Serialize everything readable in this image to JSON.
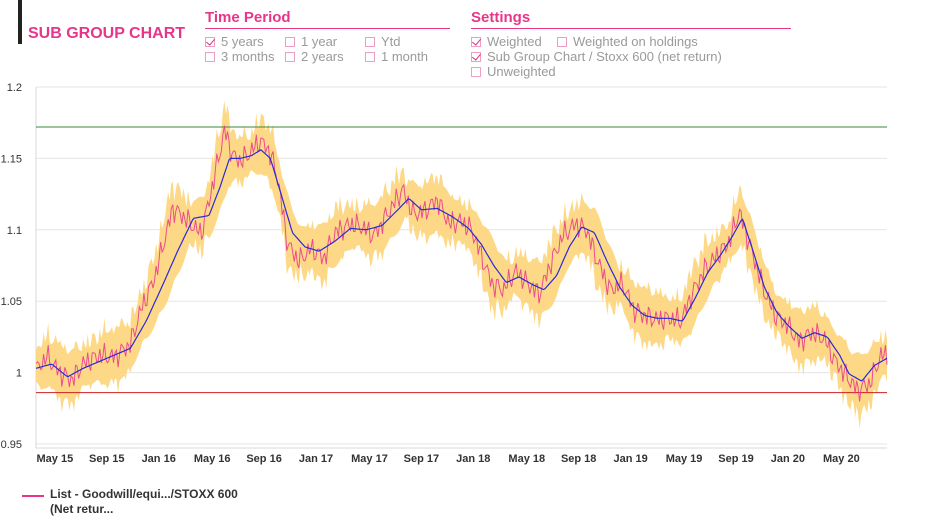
{
  "header": {
    "title": "SUB GROUP CHART"
  },
  "time_period": {
    "title": "Time Period",
    "options": [
      {
        "label": "5 years",
        "checked": true
      },
      {
        "label": "1 year",
        "checked": false
      },
      {
        "label": "Ytd",
        "checked": false
      },
      {
        "label": "3 months",
        "checked": false
      },
      {
        "label": "2 years",
        "checked": false
      },
      {
        "label": "1 month",
        "checked": false
      }
    ]
  },
  "settings": {
    "title": "Settings",
    "options": [
      {
        "label": "Weighted",
        "checked": true
      },
      {
        "label": "Weighted on holdings",
        "checked": false
      },
      {
        "label": "Sub Group Chart / Stoxx 600 (net return)",
        "checked": true
      },
      {
        "label": "Unweighted",
        "checked": false
      }
    ]
  },
  "colors": {
    "accent": "#e8358a",
    "series_line": "#e8358a",
    "band": "#fdd57a",
    "moving_avg": "#2a2ad8",
    "upper_ref": "#3a8a3a",
    "lower_ref": "#cc2222"
  },
  "chart_data": {
    "type": "line",
    "title": "",
    "xlabel": "",
    "ylabel": "",
    "ylim": [
      0.95,
      1.2
    ],
    "yticks": [
      0.95,
      1,
      1.05,
      1.1,
      1.15,
      1.2
    ],
    "ytick_labels": [
      "0.95",
      "1",
      "1.05",
      "1.1",
      "1.15",
      "1.2"
    ],
    "xlim": [
      2015.25,
      2020.66
    ],
    "xticks": [
      {
        "label": "May 15",
        "x": 2015.37
      },
      {
        "label": "Sep 15",
        "x": 2015.7
      },
      {
        "label": "Jan 16",
        "x": 2016.03
      },
      {
        "label": "May 16",
        "x": 2016.37
      },
      {
        "label": "Sep 16",
        "x": 2016.7
      },
      {
        "label": "Jan 17",
        "x": 2017.03
      },
      {
        "label": "May 17",
        "x": 2017.37
      },
      {
        "label": "Sep 17",
        "x": 2017.7
      },
      {
        "label": "Jan 18",
        "x": 2018.03
      },
      {
        "label": "May 18",
        "x": 2018.37
      },
      {
        "label": "Sep 18",
        "x": 2018.7
      },
      {
        "label": "Jan 19",
        "x": 2019.03
      },
      {
        "label": "May 19",
        "x": 2019.37
      },
      {
        "label": "Sep 19",
        "x": 2019.7
      },
      {
        "label": "Jan 20",
        "x": 2020.03
      },
      {
        "label": "May 20",
        "x": 2020.37
      }
    ],
    "reference_lines": [
      {
        "value": 1.172,
        "role": "upper"
      },
      {
        "value": 0.986,
        "role": "lower"
      }
    ],
    "grid": true,
    "legend_position": "bottom-left",
    "series": [
      {
        "name": "List - Goodwill/equi.../STOXX 600 (Net retur...",
        "role": "series",
        "x": [
          2015.25,
          2015.32,
          2015.4,
          2015.48,
          2015.55,
          2015.65,
          2015.75,
          2015.85,
          2015.92,
          2016.0,
          2016.06,
          2016.12,
          2016.2,
          2016.3,
          2016.36,
          2016.41,
          2016.45,
          2016.5,
          2016.55,
          2016.62,
          2016.67,
          2016.72,
          2016.78,
          2016.85,
          2016.92,
          2017.0,
          2017.08,
          2017.15,
          2017.25,
          2017.32,
          2017.4,
          2017.5,
          2017.58,
          2017.65,
          2017.72,
          2017.8,
          2017.88,
          2017.95,
          2018.02,
          2018.08,
          2018.15,
          2018.22,
          2018.3,
          2018.38,
          2018.45,
          2018.52,
          2018.6,
          2018.68,
          2018.75,
          2018.82,
          2018.9,
          2018.98,
          2019.05,
          2019.12,
          2019.2,
          2019.28,
          2019.35,
          2019.42,
          2019.5,
          2019.58,
          2019.66,
          2019.72,
          2019.8,
          2019.88,
          2019.95,
          2020.02,
          2020.1,
          2020.18,
          2020.26,
          2020.33,
          2020.4,
          2020.47,
          2020.55,
          2020.62,
          2020.66
        ],
        "y": [
          1.002,
          1.011,
          1.0,
          0.995,
          1.006,
          1.012,
          1.011,
          1.02,
          1.045,
          1.065,
          1.09,
          1.115,
          1.108,
          1.097,
          1.125,
          1.15,
          1.17,
          1.152,
          1.148,
          1.155,
          1.162,
          1.158,
          1.14,
          1.09,
          1.078,
          1.087,
          1.08,
          1.098,
          1.104,
          1.102,
          1.096,
          1.114,
          1.128,
          1.111,
          1.113,
          1.121,
          1.104,
          1.106,
          1.1,
          1.082,
          1.062,
          1.058,
          1.071,
          1.062,
          1.055,
          1.076,
          1.096,
          1.104,
          1.1,
          1.078,
          1.058,
          1.062,
          1.044,
          1.04,
          1.037,
          1.038,
          1.036,
          1.055,
          1.072,
          1.082,
          1.092,
          1.113,
          1.085,
          1.057,
          1.04,
          1.034,
          1.022,
          1.028,
          1.024,
          1.008,
          0.998,
          0.988,
          0.992,
          1.012,
          1.012
        ]
      },
      {
        "name": "",
        "role": "moving_average",
        "x": [
          2015.25,
          2015.35,
          2015.45,
          2015.55,
          2015.7,
          2015.85,
          2015.95,
          2016.05,
          2016.15,
          2016.25,
          2016.35,
          2016.42,
          2016.48,
          2016.55,
          2016.62,
          2016.68,
          2016.74,
          2016.8,
          2016.88,
          2016.96,
          2017.05,
          2017.15,
          2017.25,
          2017.35,
          2017.45,
          2017.55,
          2017.62,
          2017.7,
          2017.8,
          2017.9,
          2018.0,
          2018.08,
          2018.16,
          2018.24,
          2018.32,
          2018.4,
          2018.48,
          2018.56,
          2018.64,
          2018.72,
          2018.8,
          2018.88,
          2018.96,
          2019.04,
          2019.12,
          2019.2,
          2019.28,
          2019.36,
          2019.44,
          2019.52,
          2019.6,
          2019.68,
          2019.74,
          2019.8,
          2019.88,
          2019.96,
          2020.04,
          2020.12,
          2020.2,
          2020.28,
          2020.36,
          2020.42,
          2020.5,
          2020.58,
          2020.66
        ],
        "y": [
          1.003,
          1.006,
          0.997,
          1.003,
          1.01,
          1.017,
          1.036,
          1.06,
          1.085,
          1.108,
          1.11,
          1.13,
          1.15,
          1.15,
          1.152,
          1.156,
          1.15,
          1.128,
          1.098,
          1.088,
          1.085,
          1.092,
          1.101,
          1.1,
          1.103,
          1.114,
          1.122,
          1.114,
          1.115,
          1.109,
          1.101,
          1.09,
          1.075,
          1.063,
          1.067,
          1.062,
          1.058,
          1.068,
          1.088,
          1.102,
          1.098,
          1.078,
          1.06,
          1.047,
          1.04,
          1.038,
          1.038,
          1.036,
          1.052,
          1.07,
          1.082,
          1.096,
          1.108,
          1.088,
          1.06,
          1.042,
          1.032,
          1.024,
          1.028,
          1.025,
          1.012,
          0.999,
          0.994,
          1.005,
          1.01
        ]
      }
    ]
  }
}
